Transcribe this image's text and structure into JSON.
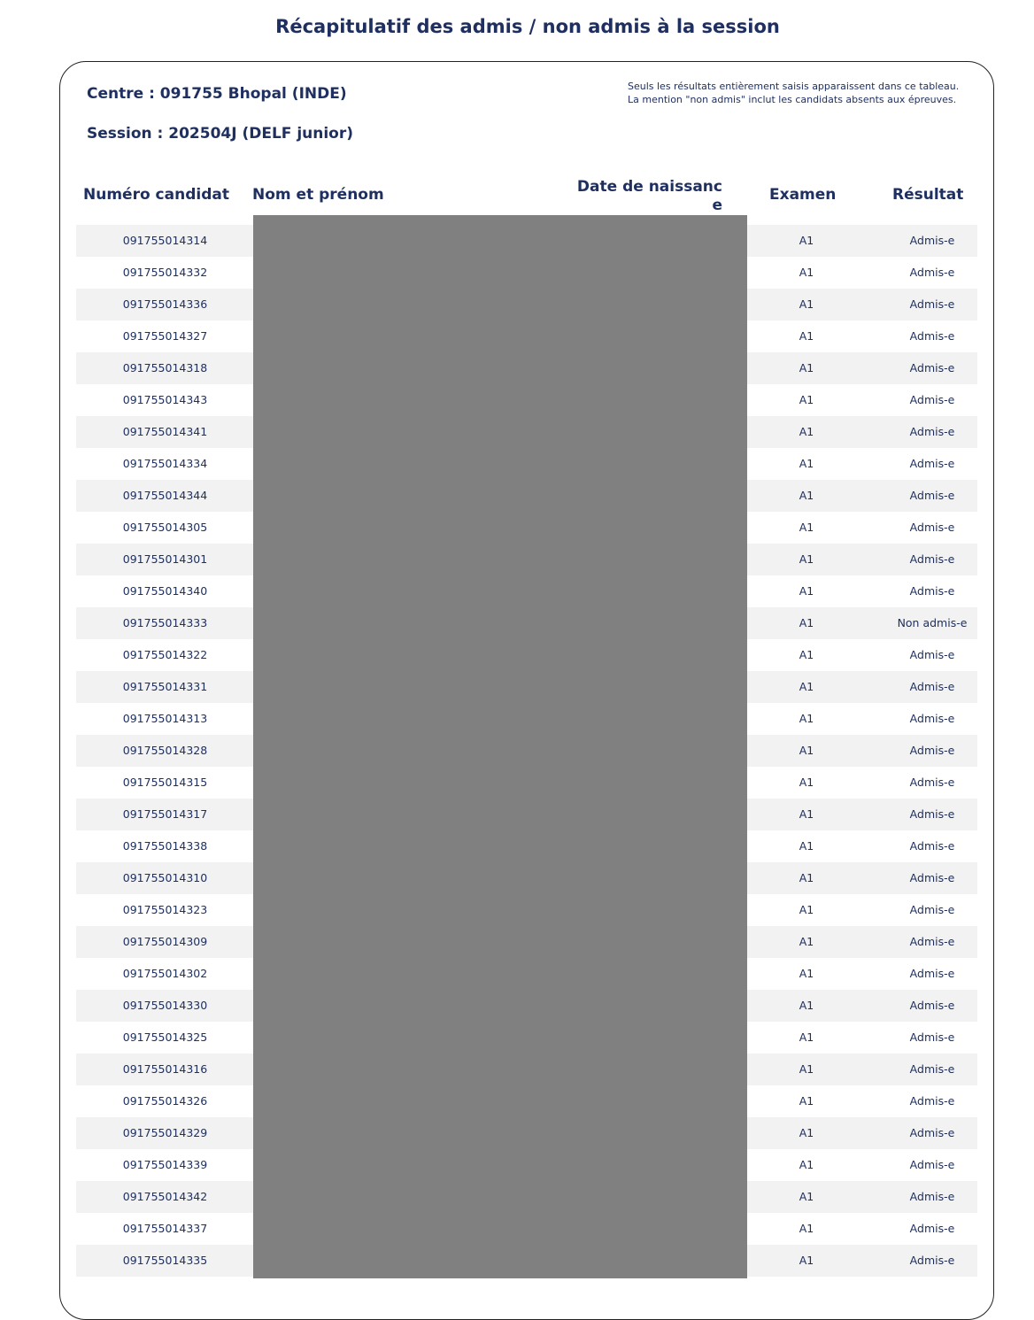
{
  "title": "Récapitulatif des admis / non admis à la session",
  "centre": "Centre : 091755 Bhopal (INDE)",
  "session": "Session : 202504J (DELF junior)",
  "notes": [
    "Seuls les résultats entièrement saisis apparaissent dans ce tableau.",
    "La mention \"non admis\" inclut les candidats absents aux épreuves."
  ],
  "headers": {
    "numero": "Numéro candidat",
    "nom": "Nom et prénom",
    "date_line1": "Date de naissanc",
    "date_line2": "e",
    "examen": "Examen",
    "resultat": "Résultat"
  },
  "rows": [
    [
      "091755014314",
      "A1",
      "Admis-e"
    ],
    [
      "091755014332",
      "A1",
      "Admis-e"
    ],
    [
      "091755014336",
      "A1",
      "Admis-e"
    ],
    [
      "091755014327",
      "A1",
      "Admis-e"
    ],
    [
      "091755014318",
      "A1",
      "Admis-e"
    ],
    [
      "091755014343",
      "A1",
      "Admis-e"
    ],
    [
      "091755014341",
      "A1",
      "Admis-e"
    ],
    [
      "091755014334",
      "A1",
      "Admis-e"
    ],
    [
      "091755014344",
      "A1",
      "Admis-e"
    ],
    [
      "091755014305",
      "A1",
      "Admis-e"
    ],
    [
      "091755014301",
      "A1",
      "Admis-e"
    ],
    [
      "091755014340",
      "A1",
      "Admis-e"
    ],
    [
      "091755014333",
      "A1",
      "Non admis-e"
    ],
    [
      "091755014322",
      "A1",
      "Admis-e"
    ],
    [
      "091755014331",
      "A1",
      "Admis-e"
    ],
    [
      "091755014313",
      "A1",
      "Admis-e"
    ],
    [
      "091755014328",
      "A1",
      "Admis-e"
    ],
    [
      "091755014315",
      "A1",
      "Admis-e"
    ],
    [
      "091755014317",
      "A1",
      "Admis-e"
    ],
    [
      "091755014338",
      "A1",
      "Admis-e"
    ],
    [
      "091755014310",
      "A1",
      "Admis-e"
    ],
    [
      "091755014323",
      "A1",
      "Admis-e"
    ],
    [
      "091755014309",
      "A1",
      "Admis-e"
    ],
    [
      "091755014302",
      "A1",
      "Admis-e"
    ],
    [
      "091755014330",
      "A1",
      "Admis-e"
    ],
    [
      "091755014325",
      "A1",
      "Admis-e"
    ],
    [
      "091755014316",
      "A1",
      "Admis-e"
    ],
    [
      "091755014326",
      "A1",
      "Admis-e"
    ],
    [
      "091755014329",
      "A1",
      "Admis-e"
    ],
    [
      "091755014339",
      "A1",
      "Admis-e"
    ],
    [
      "091755014342",
      "A1",
      "Admis-e"
    ],
    [
      "091755014337",
      "A1",
      "Admis-e"
    ],
    [
      "091755014335",
      "A1",
      "Admis-e"
    ]
  ]
}
